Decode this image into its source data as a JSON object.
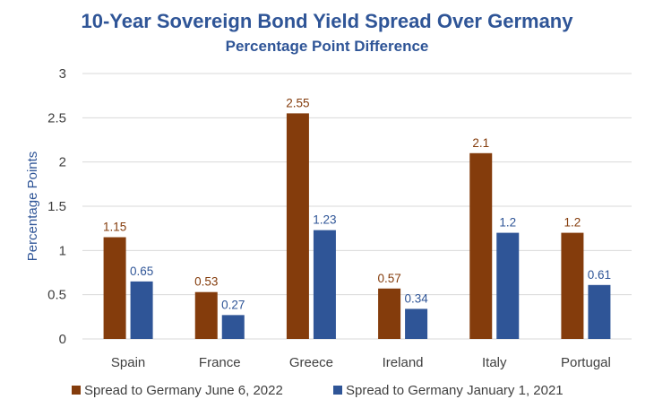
{
  "colors": {
    "series_1": "#843C0C",
    "series_2": "#2F5597",
    "title": "#2F5597",
    "gridline": "#D9D9D9",
    "tick_text": "#404040"
  },
  "chart_data": {
    "type": "bar",
    "title": "10-Year Sovereign Bond Yield Spread Over Germany",
    "subtitle": "Percentage Point Difference",
    "xlabel": "",
    "ylabel": "Percentage Points",
    "ylim": [
      0,
      3
    ],
    "yticks": [
      "0",
      "0.5",
      "1",
      "1.5",
      "2",
      "2.5",
      "3"
    ],
    "grid": true,
    "legend_position": "bottom",
    "categories": [
      "Spain",
      "France",
      "Greece",
      "Ireland",
      "Italy",
      "Portugal"
    ],
    "series": [
      {
        "name": "Spread to Germany June 6, 2022",
        "values": [
          1.15,
          0.53,
          2.55,
          0.57,
          2.1,
          1.2
        ],
        "labels": [
          "1.15",
          "0.53",
          "2.55",
          "0.57",
          "2.1",
          "1.2"
        ]
      },
      {
        "name": "Spread to Germany January 1, 2021",
        "values": [
          0.65,
          0.27,
          1.23,
          0.34,
          1.2,
          0.61
        ],
        "labels": [
          "0.65",
          "0.27",
          "1.23",
          "0.34",
          "1.2",
          "0.61"
        ]
      }
    ]
  }
}
